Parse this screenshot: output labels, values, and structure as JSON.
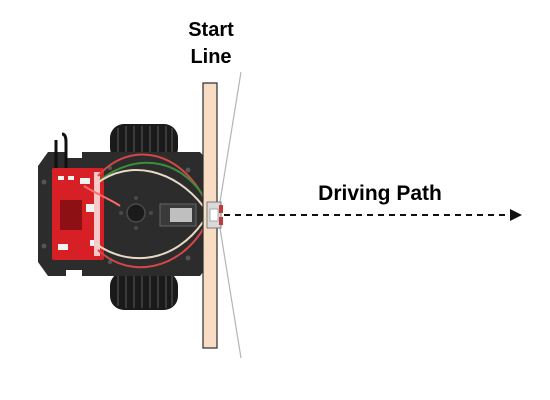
{
  "diagram": {
    "start_label_line1": "Start",
    "start_label_line2": "Line",
    "path_label": "Driving Path",
    "colors": {
      "start_line_fill": "#f9dcc4",
      "start_line_stroke": "#2b2b2b",
      "chassis": "#2c2c2c",
      "wheel": "#1a1a1a",
      "wheel_hub": "#e0b43b",
      "board": "#d62026",
      "arrow": "#111111",
      "sensor_beam": "#b5b5b5"
    }
  }
}
